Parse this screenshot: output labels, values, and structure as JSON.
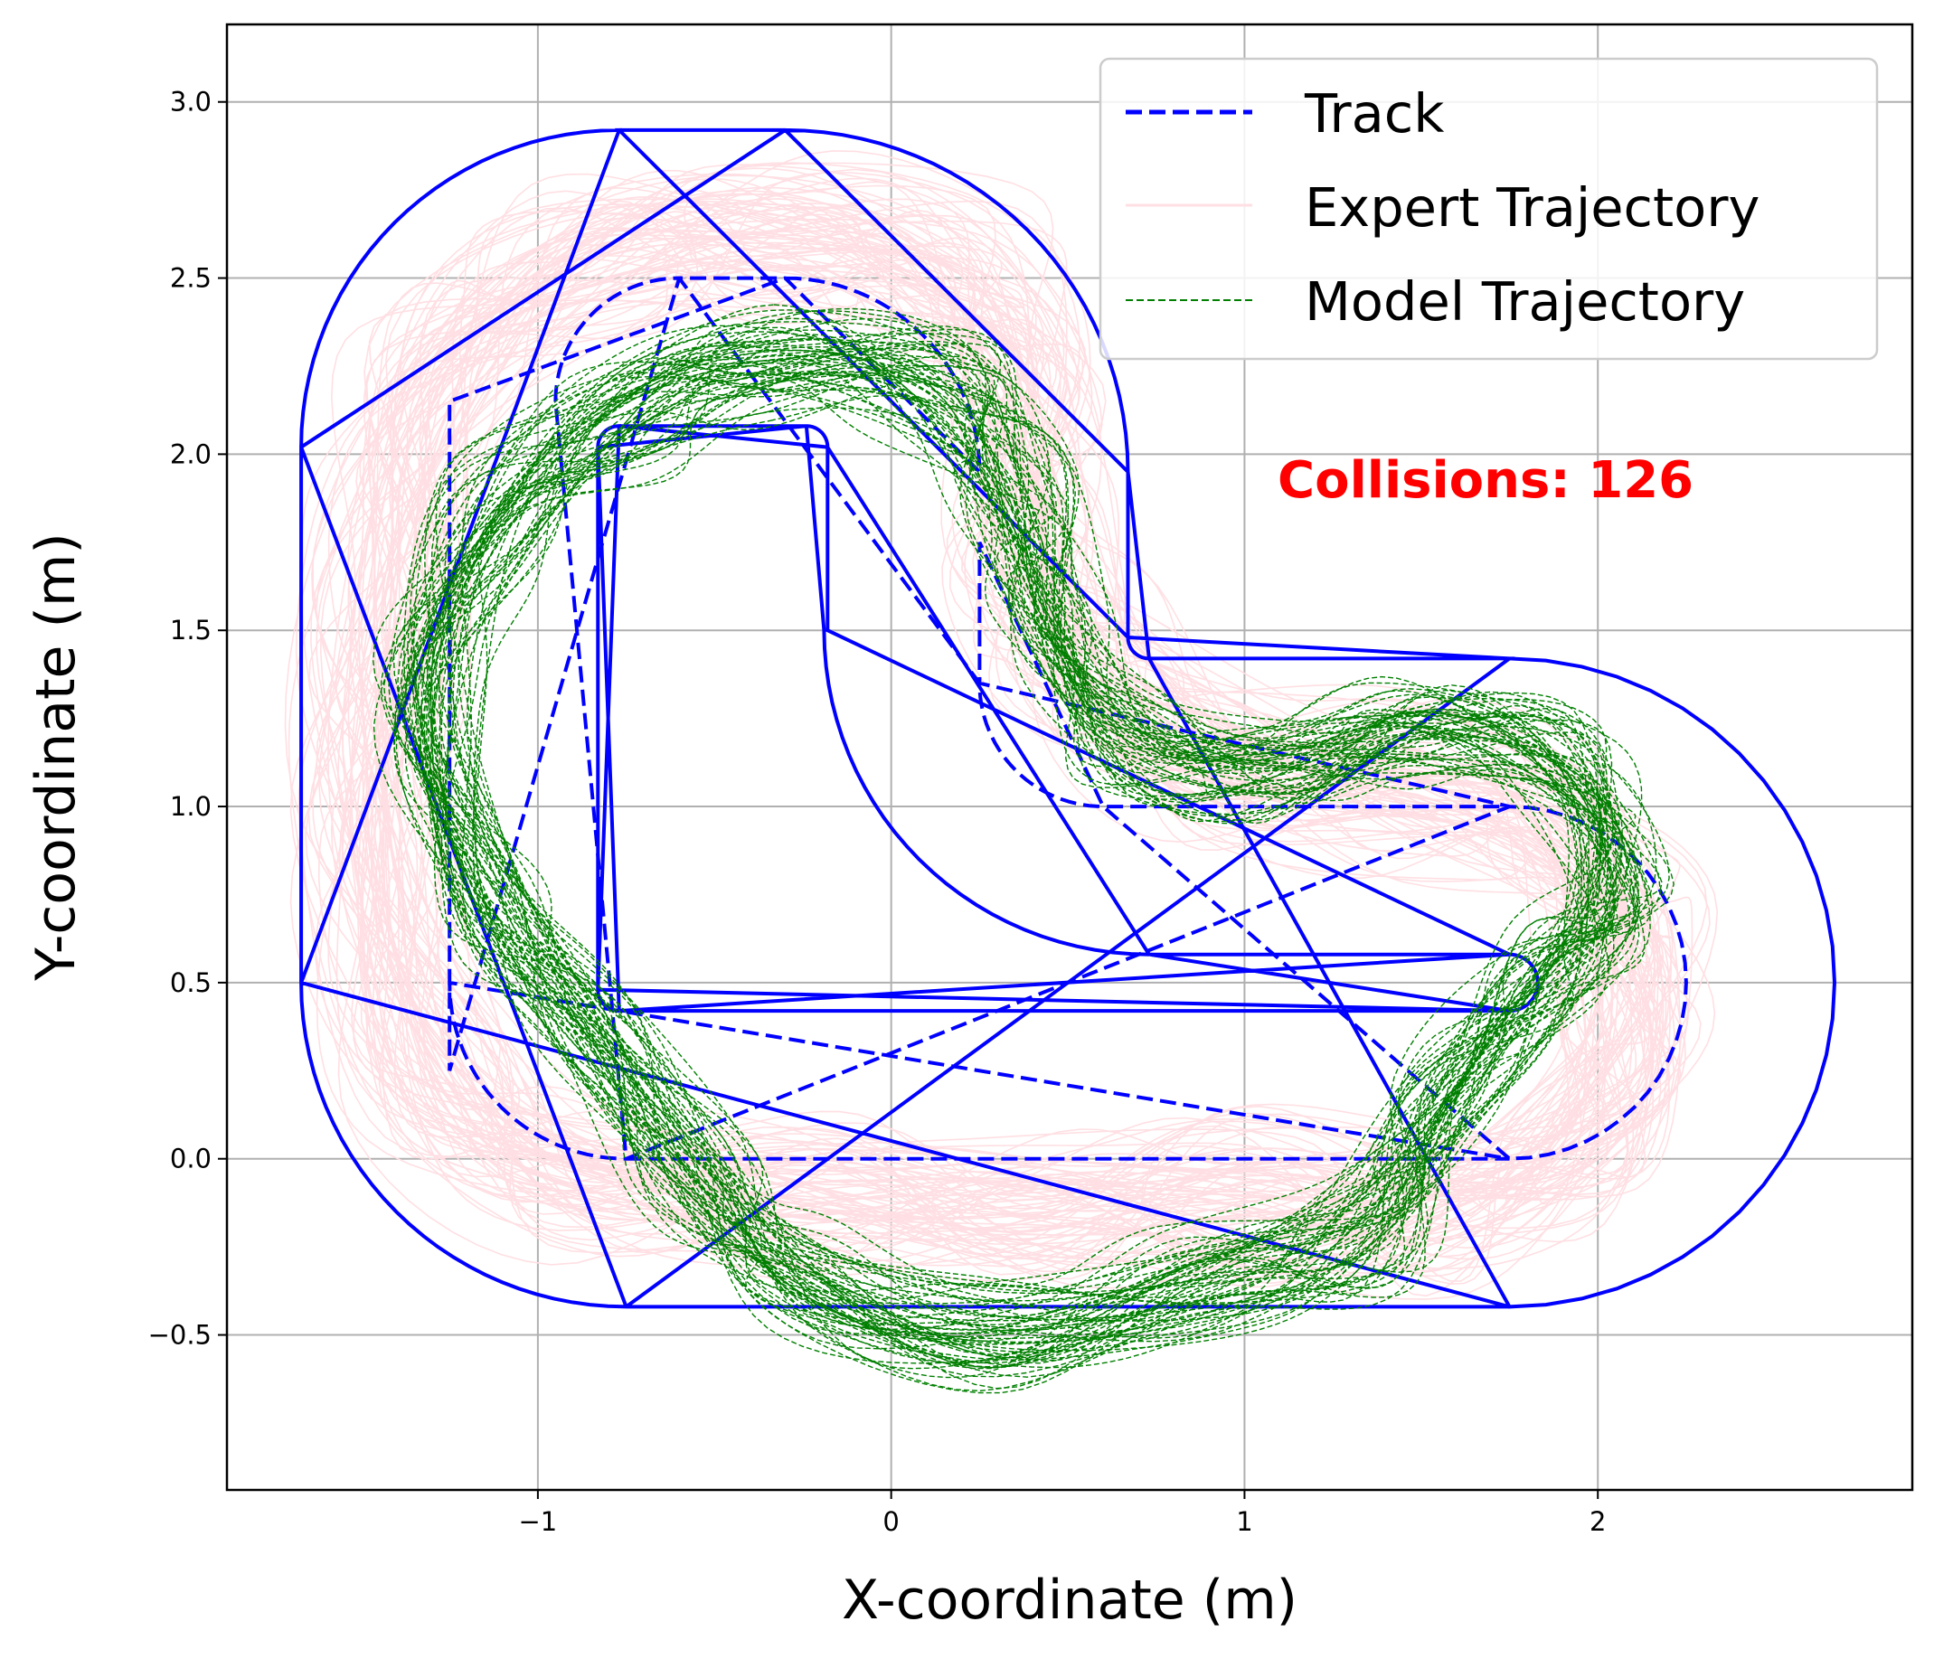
{
  "chart_data": {
    "type": "line",
    "xlabel": "X-coordinate (m)",
    "ylabel": "Y-coordinate (m)",
    "xlim": [
      -1.88,
      2.89
    ],
    "ylim": [
      -0.94,
      3.22
    ],
    "xticks": [
      {
        "value": -1,
        "label": "−1"
      },
      {
        "value": 0,
        "label": "0"
      },
      {
        "value": 1,
        "label": "1"
      },
      {
        "value": 2,
        "label": "2"
      }
    ],
    "yticks": [
      {
        "value": -0.5,
        "label": "−0.5"
      },
      {
        "value": 0.0,
        "label": "0.0"
      },
      {
        "value": 0.5,
        "label": "0.5"
      },
      {
        "value": 1.0,
        "label": "1.0"
      },
      {
        "value": 1.5,
        "label": "1.5"
      },
      {
        "value": 2.0,
        "label": "2.0"
      },
      {
        "value": 2.5,
        "label": "2.5"
      },
      {
        "value": 3.0,
        "label": "3.0"
      }
    ],
    "grid": true,
    "legend": {
      "placement": "upper right",
      "entries": [
        {
          "name": "Track",
          "style": "dashed",
          "color": "#0000ff"
        },
        {
          "name": "Expert Trajectory",
          "style": "solid",
          "color": "#ffdfe3"
        },
        {
          "name": "Model Trajectory",
          "style": "dashed",
          "color": "#007f00"
        }
      ]
    },
    "annotation": {
      "text": "Collisions: 126",
      "x": 1.1,
      "y": 1.9,
      "color": "#ff0000"
    },
    "track": {
      "centerline": {
        "straights": [
          {
            "from": [
              -0.3,
              2.5
            ],
            "to": [
              -0.6,
              2.5
            ]
          },
          {
            "from": [
              0.25,
              1.75
            ],
            "to": [
              0.25,
              1.35
            ]
          },
          {
            "from": [
              0.6,
              1.0
            ],
            "to": [
              1.75,
              1.0
            ]
          },
          {
            "from": [
              1.75,
              0.0
            ],
            "to": [
              -0.75,
              0.0
            ]
          },
          {
            "from": [
              -1.25,
              0.25
            ],
            "to": [
              -1.25,
              2.15
            ]
          }
        ],
        "arcs": [
          {
            "center": [
              -0.3,
              1.95
            ],
            "radius": 0.55,
            "from_deg": 90,
            "to_deg": 0
          },
          {
            "center": [
              0.6,
              1.35
            ],
            "radius": 0.35,
            "from_deg": 180,
            "to_deg": 270
          },
          {
            "center": [
              1.75,
              0.5
            ],
            "radius": 0.5,
            "from_deg": 90,
            "to_deg": -90
          },
          {
            "center": [
              -0.75,
              0.5
            ],
            "radius": 0.5,
            "from_deg": 270,
            "to_deg": 180
          },
          {
            "center": [
              -0.6,
              2.15
            ],
            "radius": 0.35,
            "from_deg": 180,
            "to_deg": 90
          }
        ]
      },
      "outer_boundary": {
        "straights": [
          {
            "from": [
              -0.3,
              2.92
            ],
            "to": [
              -0.77,
              2.92
            ]
          },
          {
            "from": [
              0.67,
              1.95
            ],
            "to": [
              0.67,
              1.48
            ]
          },
          {
            "from": [
              0.73,
              1.42
            ],
            "to": [
              1.75,
              1.42
            ]
          },
          {
            "from": [
              1.75,
              -0.42
            ],
            "to": [
              -0.75,
              -0.42
            ]
          },
          {
            "from": [
              -1.67,
              0.5
            ],
            "to": [
              -1.67,
              2.02
            ]
          }
        ],
        "arcs": [
          {
            "center": [
              -0.3,
              1.95
            ],
            "radius": 0.97,
            "from_deg": 90,
            "to_deg": 0
          },
          {
            "center": [
              0.73,
              1.48
            ],
            "radius": 0.06,
            "from_deg": 180,
            "to_deg": 270
          },
          {
            "center": [
              1.75,
              0.5
            ],
            "radius": 0.92,
            "from_deg": 90,
            "to_deg": -90
          },
          {
            "center": [
              -0.75,
              0.5
            ],
            "radius": 0.92,
            "from_deg": 270,
            "to_deg": 180
          },
          {
            "center": [
              -0.77,
              2.02
            ],
            "radius": 0.9,
            "from_deg": 180,
            "to_deg": 90
          }
        ]
      },
      "inner_boundary": {
        "straights": [
          {
            "from": [
              -0.77,
              2.08
            ],
            "to": [
              -0.24,
              2.08
            ]
          },
          {
            "from": [
              -0.18,
              2.02
            ],
            "to": [
              -0.18,
              1.5
            ]
          },
          {
            "from": [
              0.73,
              0.58
            ],
            "to": [
              1.75,
              0.58
            ]
          },
          {
            "from": [
              1.75,
              0.42
            ],
            "to": [
              -0.77,
              0.42
            ]
          },
          {
            "from": [
              -0.83,
              0.48
            ],
            "to": [
              -0.83,
              2.02
            ]
          }
        ],
        "arcs": [
          {
            "center": [
              -0.24,
              2.02
            ],
            "radius": 0.06,
            "from_deg": 90,
            "to_deg": 0
          },
          {
            "center": [
              0.73,
              1.5
            ],
            "radius": 0.92,
            "from_deg": 180,
            "to_deg": 270
          },
          {
            "center": [
              1.75,
              0.5
            ],
            "radius": 0.08,
            "from_deg": 90,
            "to_deg": -90
          },
          {
            "center": [
              -0.77,
              0.48
            ],
            "radius": 0.06,
            "from_deg": 270,
            "to_deg": 180
          },
          {
            "center": [
              -0.77,
              2.02
            ],
            "radius": 0.06,
            "from_deg": 180,
            "to_deg": 90
          }
        ]
      }
    },
    "expert_trajectories": {
      "count": 80,
      "color": "#ffdfe3",
      "reference_waypoints": [
        [
          -0.3,
          2.6
        ],
        [
          0.15,
          2.5
        ],
        [
          0.35,
          2.2
        ],
        [
          0.4,
          1.75
        ],
        [
          0.55,
          1.4
        ],
        [
          0.95,
          1.15
        ],
        [
          1.5,
          1.05
        ],
        [
          1.9,
          0.9
        ],
        [
          2.1,
          0.5
        ],
        [
          1.95,
          0.05
        ],
        [
          1.5,
          -0.15
        ],
        [
          1.0,
          -0.1
        ],
        [
          0.4,
          -0.15
        ],
        [
          -0.2,
          -0.1
        ],
        [
          -0.9,
          -0.05
        ],
        [
          -1.3,
          0.25
        ],
        [
          -1.45,
          0.9
        ],
        [
          -1.45,
          1.6
        ],
        [
          -1.3,
          2.2
        ],
        [
          -0.85,
          2.55
        ]
      ],
      "spread_m": 0.22
    },
    "model_trajectories": {
      "count": 60,
      "color": "#007f00",
      "reference_waypoints": [
        [
          -0.4,
          2.25
        ],
        [
          0.1,
          2.2
        ],
        [
          0.35,
          1.9
        ],
        [
          0.45,
          1.5
        ],
        [
          0.7,
          1.2
        ],
        [
          1.1,
          1.1
        ],
        [
          1.5,
          1.2
        ],
        [
          1.9,
          1.1
        ],
        [
          2.05,
          0.75
        ],
        [
          1.85,
          0.5
        ],
        [
          1.55,
          0.15
        ],
        [
          1.35,
          -0.2
        ],
        [
          0.9,
          -0.35
        ],
        [
          0.3,
          -0.5
        ],
        [
          -0.25,
          -0.35
        ],
        [
          -0.55,
          -0.05
        ],
        [
          -0.85,
          0.4
        ],
        [
          -1.15,
          0.75
        ],
        [
          -1.3,
          1.3
        ],
        [
          -1.1,
          1.8
        ],
        [
          -0.75,
          2.1
        ]
      ],
      "spread_m": 0.15
    }
  }
}
